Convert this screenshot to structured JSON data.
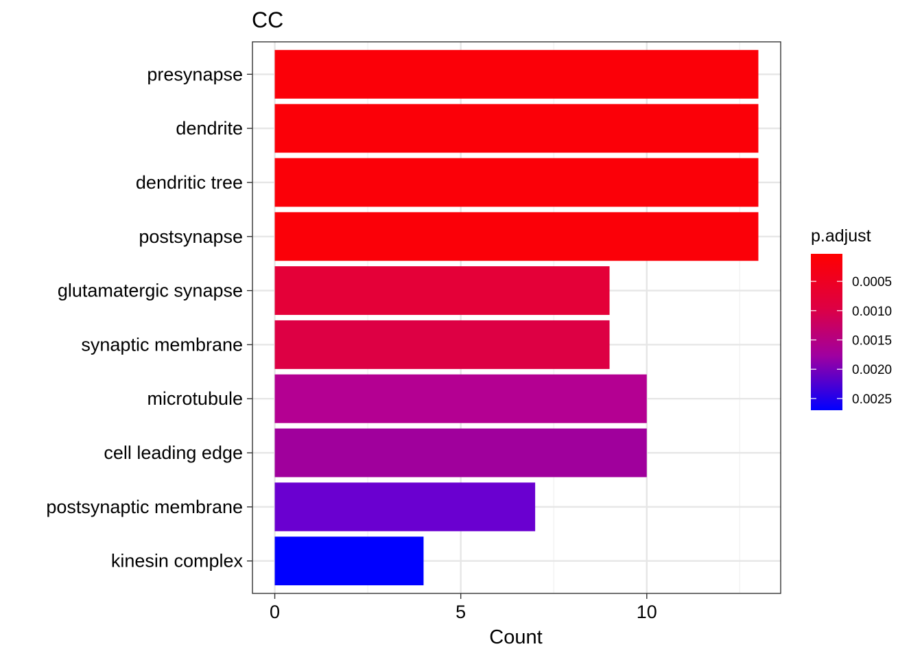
{
  "chart_data": {
    "type": "bar",
    "orientation": "horizontal",
    "title": "CC",
    "xlabel": "Count",
    "ylabel": "",
    "xlim": [
      -0.6,
      13.6
    ],
    "x_ticks": [
      0,
      5,
      10
    ],
    "x_tick_labels": [
      "0",
      "5",
      "10"
    ],
    "grid": true,
    "categories": [
      "presynapse",
      "dendrite",
      "dendritic tree",
      "postsynapse",
      "glutamatergic synapse",
      "synaptic membrane",
      "microtubule",
      "cell leading edge",
      "postsynaptic membrane",
      "kinesin complex"
    ],
    "values": [
      13,
      13,
      13,
      13,
      9,
      9,
      10,
      10,
      7,
      4
    ],
    "p_adjust": [
      3e-05,
      3e-05,
      3e-05,
      3e-05,
      0.00075,
      0.0009,
      0.0016,
      0.0018,
      0.0023,
      0.0027
    ],
    "colors": [
      "#fb0008",
      "#fb0008",
      "#fb0008",
      "#fb0008",
      "#e40038",
      "#dd0044",
      "#b40092",
      "#a0009c",
      "#6a00d0",
      "#0000ff"
    ],
    "legend": {
      "title": "p.adjust",
      "position": "right",
      "ticks": [
        0.0005,
        0.001,
        0.0015,
        0.002,
        0.0025
      ],
      "tick_labels": [
        "0.0005",
        "0.0010",
        "0.0015",
        "0.0020",
        "0.0025"
      ],
      "range": [
        3e-05,
        0.0027
      ],
      "low_color": "#ff0000",
      "high_color": "#0000ff"
    }
  }
}
